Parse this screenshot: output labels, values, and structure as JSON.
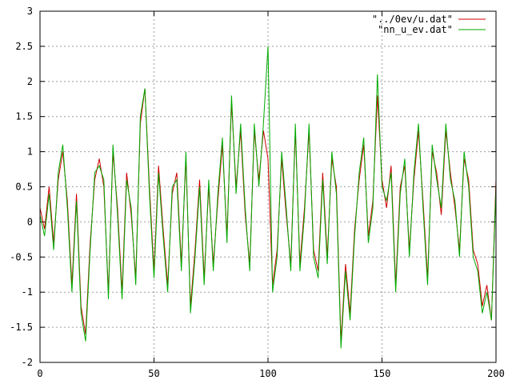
{
  "chart_data": {
    "type": "line",
    "title": "",
    "xlabel": "",
    "ylabel": "",
    "xlim": [
      0,
      200
    ],
    "ylim": [
      -2,
      3
    ],
    "x_ticks": [
      "0",
      "50",
      "100",
      "150",
      "200"
    ],
    "y_ticks": [
      "3",
      "2.5",
      "2",
      "1.5",
      "1",
      "0.5",
      "0",
      "-0.5",
      "-1",
      "-1.5",
      "-2"
    ],
    "grid": true,
    "legend_position": "top-right",
    "x": [
      0,
      2,
      4,
      6,
      8,
      10,
      12,
      14,
      16,
      18,
      20,
      22,
      24,
      26,
      28,
      30,
      32,
      34,
      36,
      38,
      40,
      42,
      44,
      46,
      48,
      50,
      52,
      54,
      56,
      58,
      60,
      62,
      64,
      66,
      68,
      70,
      72,
      74,
      76,
      78,
      80,
      82,
      84,
      86,
      88,
      90,
      92,
      94,
      96,
      98,
      100,
      102,
      104,
      106,
      108,
      110,
      112,
      114,
      116,
      118,
      120,
      122,
      124,
      126,
      128,
      130,
      132,
      134,
      136,
      138,
      140,
      142,
      144,
      146,
      148,
      150,
      152,
      154,
      156,
      158,
      160,
      162,
      164,
      166,
      168,
      170,
      172,
      174,
      176,
      178,
      180,
      182,
      184,
      186,
      188,
      190,
      192,
      194,
      196,
      198,
      200
    ],
    "series": [
      {
        "name": "\"../0ev/u.dat\"",
        "color": "#cc0000",
        "values": [
          0.2,
          -0.1,
          0.5,
          -0.3,
          0.6,
          1.0,
          0.3,
          -0.9,
          0.4,
          -1.2,
          -1.6,
          -0.3,
          0.6,
          0.9,
          0.5,
          -1.0,
          1.0,
          0.2,
          -1.0,
          0.7,
          0.1,
          -0.8,
          1.4,
          1.9,
          0.5,
          -0.7,
          0.8,
          -0.1,
          -0.9,
          0.4,
          0.7,
          -0.6,
          0.9,
          -1.2,
          -0.4,
          0.6,
          -0.8,
          0.5,
          -0.6,
          0.3,
          1.1,
          -0.2,
          1.7,
          0.5,
          1.3,
          0.1,
          -0.6,
          1.3,
          0.6,
          1.3,
          0.9,
          -0.9,
          -0.4,
          0.9,
          0.1,
          -0.6,
          1.3,
          -0.6,
          0.2,
          1.3,
          -0.4,
          -0.7,
          0.7,
          -0.5,
          0.9,
          0.5,
          -1.7,
          -0.6,
          -1.3,
          -0.1,
          0.6,
          1.1,
          -0.2,
          0.3,
          1.8,
          0.6,
          0.2,
          0.8,
          -0.9,
          0.5,
          0.8,
          -0.4,
          0.6,
          1.3,
          0.3,
          -0.8,
          1.0,
          0.7,
          0.1,
          1.3,
          0.7,
          0.2,
          -0.4,
          0.9,
          0.6,
          -0.4,
          -0.6,
          -1.2,
          -0.9,
          -1.4,
          0.6
        ]
      },
      {
        "name": "\"nn_u_ev.dat\"",
        "color": "#00aa00",
        "values": [
          0.1,
          -0.2,
          0.4,
          -0.4,
          0.7,
          1.1,
          0.2,
          -1.0,
          0.3,
          -1.3,
          -1.7,
          -0.4,
          0.7,
          0.8,
          0.6,
          -1.1,
          1.1,
          0.1,
          -1.1,
          0.6,
          0.2,
          -0.9,
          1.5,
          1.9,
          0.4,
          -0.8,
          0.7,
          -0.2,
          -1.0,
          0.5,
          0.6,
          -0.7,
          1.0,
          -1.3,
          -0.5,
          0.5,
          -0.9,
          0.6,
          -0.7,
          0.4,
          1.2,
          -0.3,
          1.8,
          0.4,
          1.4,
          0.2,
          -0.7,
          1.4,
          0.5,
          1.4,
          2.5,
          -1.0,
          -0.5,
          1.0,
          0.2,
          -0.7,
          1.4,
          -0.7,
          0.1,
          1.4,
          -0.5,
          -0.8,
          0.6,
          -0.6,
          1.0,
          0.4,
          -1.8,
          -0.7,
          -1.4,
          -0.2,
          0.7,
          1.2,
          -0.3,
          0.2,
          2.1,
          0.5,
          0.3,
          0.7,
          -1.0,
          0.4,
          0.9,
          -0.5,
          0.7,
          1.4,
          0.2,
          -0.9,
          1.1,
          0.6,
          0.2,
          1.4,
          0.6,
          0.3,
          -0.5,
          1.0,
          0.5,
          -0.5,
          -0.7,
          -1.3,
          -1.0,
          -1.4,
          0.5
        ]
      }
    ]
  }
}
